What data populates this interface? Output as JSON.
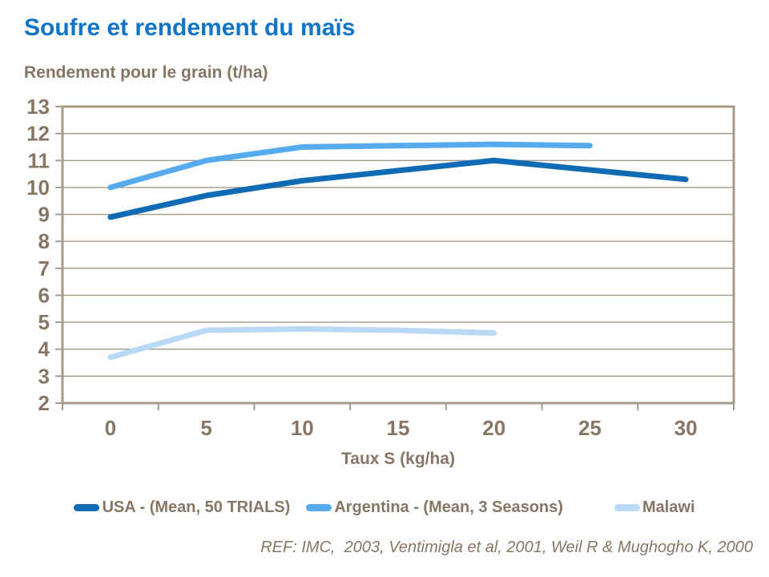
{
  "title": "Soufre et rendement du maïs",
  "footer": "REF: IMC,  2003, Ventimigla et al, 2001, Weil R & Mughogho K, 2000",
  "colors": {
    "title": "#0e74c8",
    "text": "#877663",
    "frame": "#a69a8b",
    "grid": "#a3978a",
    "background": "#ffffff"
  },
  "chart_data": {
    "type": "line",
    "title": "Soufre et rendement du maïs",
    "xlabel": "Taux S (kg/ha)",
    "ylabel": "Rendement pour le grain (t/ha)",
    "x_ticks": [
      0,
      5,
      10,
      15,
      20,
      25,
      30
    ],
    "y_ticks": [
      2,
      3,
      4,
      5,
      6,
      7,
      8,
      9,
      10,
      11,
      12,
      13
    ],
    "ylim": [
      2,
      13
    ],
    "grid": true,
    "legend_position": "bottom",
    "series": [
      {
        "name": "USA - (Mean, 50 TRIALS)",
        "color": "#0f6bb4",
        "points": [
          [
            0,
            8.9
          ],
          [
            5,
            9.7
          ],
          [
            10,
            10.25
          ],
          [
            20,
            11.0
          ],
          [
            30,
            10.3
          ]
        ]
      },
      {
        "name": "Argentina - (Mean, 3 Seasons)",
        "color": "#56aaee",
        "points": [
          [
            0,
            10.0
          ],
          [
            5,
            11.0
          ],
          [
            10,
            11.5
          ],
          [
            15,
            11.55
          ],
          [
            20,
            11.6
          ],
          [
            25,
            11.55
          ]
        ]
      },
      {
        "name": "Malawi",
        "color": "#b9d9f7",
        "points": [
          [
            0,
            3.7
          ],
          [
            5,
            4.7
          ],
          [
            10,
            4.75
          ],
          [
            15,
            4.7
          ],
          [
            20,
            4.6
          ]
        ]
      }
    ]
  }
}
